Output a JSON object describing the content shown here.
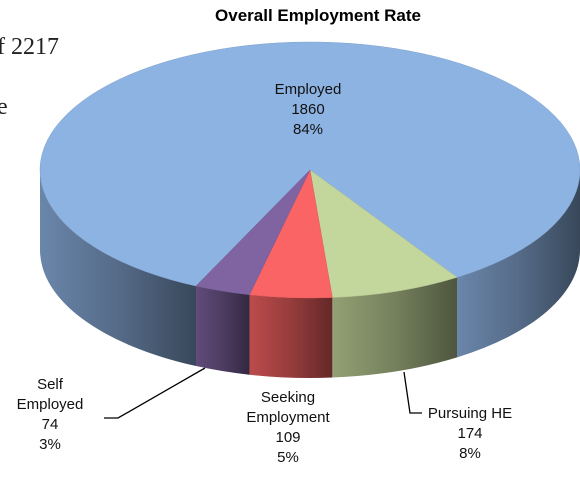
{
  "background_text": [
    "f 2217",
    "e"
  ],
  "chart_data": {
    "type": "pie3d",
    "title": "Overall Employment Rate",
    "categories": [
      "Employed",
      "Pursuing HE",
      "Seeking Employment",
      "Self Employed"
    ],
    "values": [
      1860,
      174,
      109,
      74
    ],
    "percent_labels": [
      "84%",
      "8%",
      "5%",
      "3%"
    ],
    "colors": [
      "#8db3e2",
      "#c3d69b",
      "#fa6464",
      "#8064a2"
    ]
  }
}
